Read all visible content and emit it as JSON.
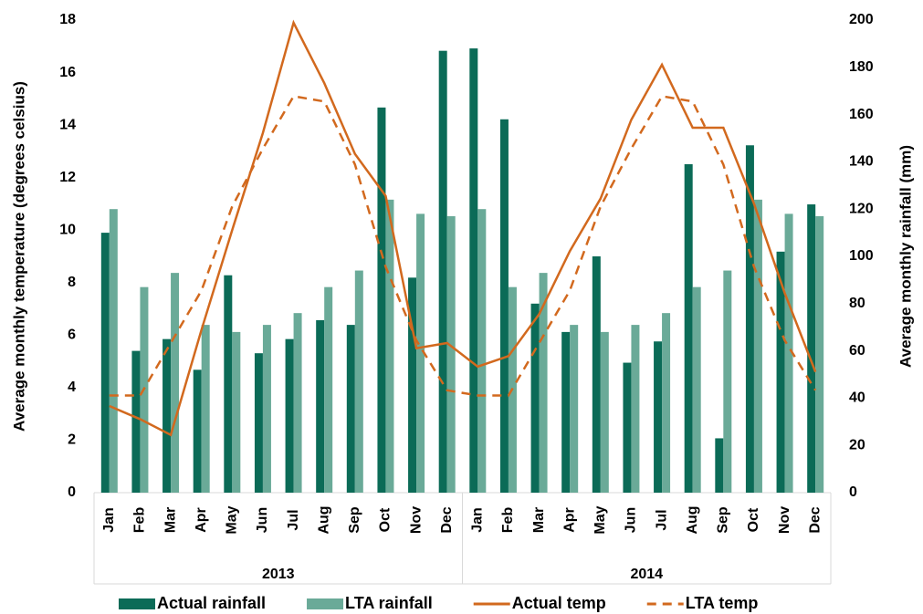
{
  "chart_data": {
    "type": "bar-line",
    "y_label": "Average monthly temperature (degrees celsius)",
    "y2_label": "Average monthly rainfall (mm)",
    "categories": [
      "Jan",
      "Feb",
      "Mar",
      "Apr",
      "May",
      "Jun",
      "Jul",
      "Aug",
      "Sep",
      "Oct",
      "Nov",
      "Dec",
      "Jan",
      "Feb",
      "Mar",
      "Apr",
      "May",
      "Jun",
      "Jul",
      "Aug",
      "Sep",
      "Oct",
      "Nov",
      "Dec"
    ],
    "groups": [
      "2013",
      "2014"
    ],
    "ylim": [
      0,
      18
    ],
    "yticks": [
      0,
      2,
      4,
      6,
      8,
      10,
      12,
      14,
      16,
      18
    ],
    "y2lim": [
      0,
      200
    ],
    "y2ticks": [
      0,
      20,
      40,
      60,
      80,
      100,
      120,
      140,
      160,
      180,
      200
    ],
    "series": [
      {
        "name": "Actual rainfall",
        "type": "bar",
        "axis": "y2",
        "color": "#0b6b57",
        "values": [
          110,
          60,
          65,
          52,
          92,
          59,
          65,
          73,
          71,
          163,
          91,
          187,
          188,
          158,
          80,
          68,
          100,
          55,
          64,
          139,
          23,
          147,
          102,
          122
        ]
      },
      {
        "name": "LTA rainfall",
        "type": "bar",
        "axis": "y2",
        "color": "#6aaa98",
        "values": [
          120,
          87,
          93,
          71,
          68,
          71,
          76,
          87,
          94,
          124,
          118,
          117,
          120,
          87,
          93,
          71,
          68,
          71,
          76,
          87,
          94,
          124,
          118,
          117
        ]
      },
      {
        "name": "Actual temp",
        "type": "line",
        "color": "#d2691e",
        "dashed": false,
        "values": [
          3.3,
          2.8,
          2.2,
          6.2,
          10.0,
          13.7,
          17.9,
          15.6,
          12.9,
          11.3,
          5.5,
          5.7,
          4.8,
          5.2,
          6.8,
          9.2,
          11.2,
          14.2,
          16.3,
          13.9,
          13.9,
          11.0,
          7.6,
          4.6
        ]
      },
      {
        "name": "LTA temp",
        "type": "line",
        "color": "#d2691e",
        "dashed": true,
        "values": [
          3.7,
          3.7,
          5.7,
          7.7,
          10.9,
          13.1,
          15.1,
          14.9,
          12.5,
          8.6,
          5.8,
          3.9,
          3.7,
          3.7,
          5.7,
          7.7,
          10.9,
          13.1,
          15.1,
          14.9,
          12.5,
          8.6,
          5.8,
          3.9
        ]
      }
    ]
  }
}
